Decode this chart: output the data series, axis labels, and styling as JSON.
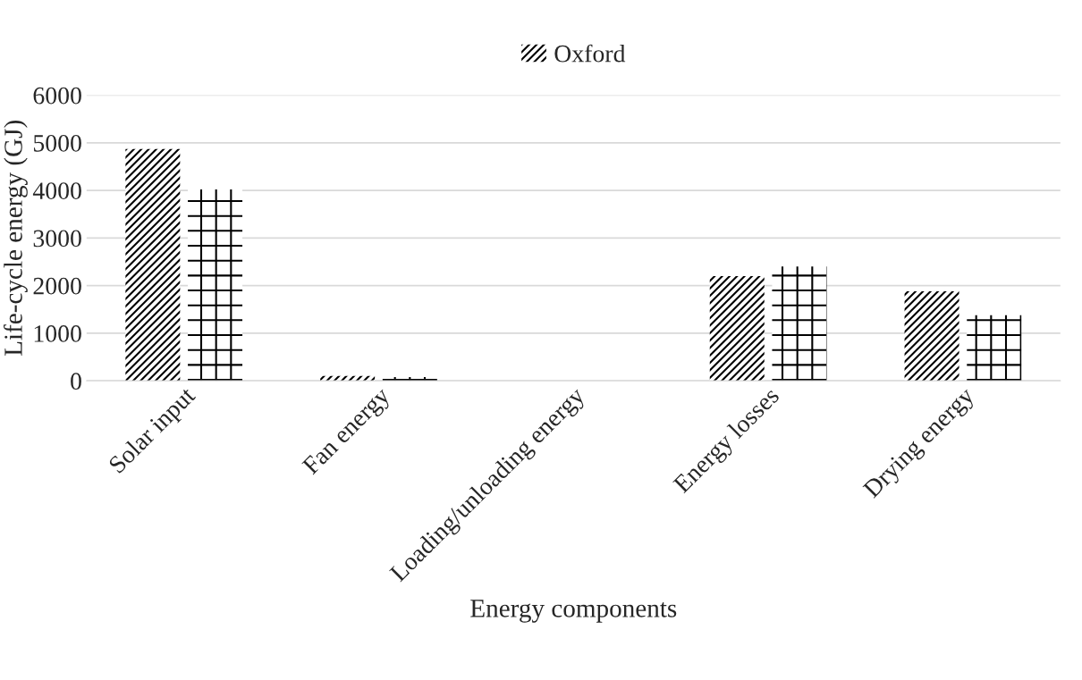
{
  "chart_data": {
    "type": "bar",
    "xlabel": "Energy components",
    "ylabel": "Life-cycle energy (GJ)",
    "categories": [
      "Solar input",
      "Fan energy",
      "Loading/unloading energy",
      "Energy losses",
      "Drying energy"
    ],
    "series": [
      {
        "name": "Oxford",
        "color": "#000000",
        "values": [
          4870,
          100,
          0,
          2200,
          1880
        ]
      },
      {
        "color": "#000000",
        "values": [
          4020,
          80,
          0,
          2400,
          1380
        ]
      }
    ],
    "ylim": [
      0,
      6000
    ],
    "yticks": [
      0,
      1000,
      2000,
      3000,
      4000,
      5000,
      6000
    ],
    "grid": "y",
    "legend": "top"
  }
}
